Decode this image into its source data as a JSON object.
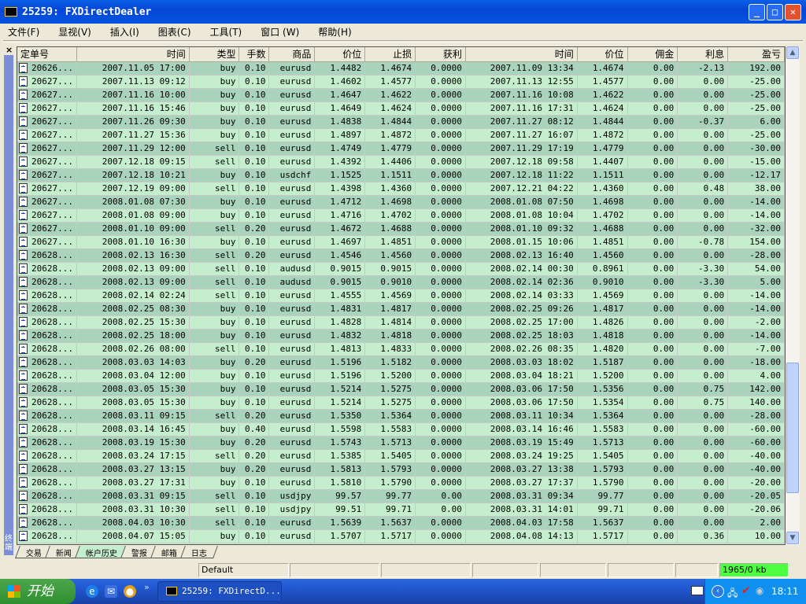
{
  "window": {
    "title": "25259: FXDirectDealer",
    "controls": [
      "minimize",
      "maximize",
      "close"
    ]
  },
  "menu": [
    "文件(F)",
    "显视(V)",
    "插入(I)",
    "图表(C)",
    "工具(T)",
    "窗口 (W)",
    "帮助(H)"
  ],
  "terminal": {
    "side_label": "终端",
    "close_label": "×"
  },
  "table": {
    "columns": [
      "定单号",
      "时间",
      "类型",
      "手数",
      "商品",
      "价位",
      "止损",
      "获利",
      "时间",
      "价位",
      "佣金",
      "利息",
      "盈亏"
    ],
    "rows": [
      [
        "20626...",
        "2007.11.05 17:00",
        "buy",
        "0.10",
        "eurusd",
        "1.4482",
        "1.4674",
        "0.0000",
        "2007.11.09 13:34",
        "1.4674",
        "0.00",
        "-2.13",
        "192.00"
      ],
      [
        "20627...",
        "2007.11.13 09:12",
        "buy",
        "0.10",
        "eurusd",
        "1.4602",
        "1.4577",
        "0.0000",
        "2007.11.13 12:55",
        "1.4577",
        "0.00",
        "0.00",
        "-25.00"
      ],
      [
        "20627...",
        "2007.11.16 10:00",
        "buy",
        "0.10",
        "eurusd",
        "1.4647",
        "1.4622",
        "0.0000",
        "2007.11.16 10:08",
        "1.4622",
        "0.00",
        "0.00",
        "-25.00"
      ],
      [
        "20627...",
        "2007.11.16 15:46",
        "buy",
        "0.10",
        "eurusd",
        "1.4649",
        "1.4624",
        "0.0000",
        "2007.11.16 17:31",
        "1.4624",
        "0.00",
        "0.00",
        "-25.00"
      ],
      [
        "20627...",
        "2007.11.26 09:30",
        "buy",
        "0.10",
        "eurusd",
        "1.4838",
        "1.4844",
        "0.0000",
        "2007.11.27 08:12",
        "1.4844",
        "0.00",
        "-0.37",
        "6.00"
      ],
      [
        "20627...",
        "2007.11.27 15:36",
        "buy",
        "0.10",
        "eurusd",
        "1.4897",
        "1.4872",
        "0.0000",
        "2007.11.27 16:07",
        "1.4872",
        "0.00",
        "0.00",
        "-25.00"
      ],
      [
        "20627...",
        "2007.11.29 12:00",
        "sell",
        "0.10",
        "eurusd",
        "1.4749",
        "1.4779",
        "0.0000",
        "2007.11.29 17:19",
        "1.4779",
        "0.00",
        "0.00",
        "-30.00"
      ],
      [
        "20627...",
        "2007.12.18 09:15",
        "sell",
        "0.10",
        "eurusd",
        "1.4392",
        "1.4406",
        "0.0000",
        "2007.12.18 09:58",
        "1.4407",
        "0.00",
        "0.00",
        "-15.00"
      ],
      [
        "20627...",
        "2007.12.18 10:21",
        "buy",
        "0.10",
        "usdchf",
        "1.1525",
        "1.1511",
        "0.0000",
        "2007.12.18 11:22",
        "1.1511",
        "0.00",
        "0.00",
        "-12.17"
      ],
      [
        "20627...",
        "2007.12.19 09:00",
        "sell",
        "0.10",
        "eurusd",
        "1.4398",
        "1.4360",
        "0.0000",
        "2007.12.21 04:22",
        "1.4360",
        "0.00",
        "0.48",
        "38.00"
      ],
      [
        "20627...",
        "2008.01.08 07:30",
        "buy",
        "0.10",
        "eurusd",
        "1.4712",
        "1.4698",
        "0.0000",
        "2008.01.08 07:50",
        "1.4698",
        "0.00",
        "0.00",
        "-14.00"
      ],
      [
        "20627...",
        "2008.01.08 09:00",
        "buy",
        "0.10",
        "eurusd",
        "1.4716",
        "1.4702",
        "0.0000",
        "2008.01.08 10:04",
        "1.4702",
        "0.00",
        "0.00",
        "-14.00"
      ],
      [
        "20627...",
        "2008.01.10 09:00",
        "sell",
        "0.20",
        "eurusd",
        "1.4672",
        "1.4688",
        "0.0000",
        "2008.01.10 09:32",
        "1.4688",
        "0.00",
        "0.00",
        "-32.00"
      ],
      [
        "20627...",
        "2008.01.10 16:30",
        "buy",
        "0.10",
        "eurusd",
        "1.4697",
        "1.4851",
        "0.0000",
        "2008.01.15 10:06",
        "1.4851",
        "0.00",
        "-0.78",
        "154.00"
      ],
      [
        "20628...",
        "2008.02.13 16:30",
        "sell",
        "0.20",
        "eurusd",
        "1.4546",
        "1.4560",
        "0.0000",
        "2008.02.13 16:40",
        "1.4560",
        "0.00",
        "0.00",
        "-28.00"
      ],
      [
        "20628...",
        "2008.02.13 09:00",
        "sell",
        "0.10",
        "audusd",
        "0.9015",
        "0.9015",
        "0.0000",
        "2008.02.14 00:30",
        "0.8961",
        "0.00",
        "-3.30",
        "54.00"
      ],
      [
        "20628...",
        "2008.02.13 09:00",
        "sell",
        "0.10",
        "audusd",
        "0.9015",
        "0.9010",
        "0.0000",
        "2008.02.14 02:36",
        "0.9010",
        "0.00",
        "-3.30",
        "5.00"
      ],
      [
        "20628...",
        "2008.02.14 02:24",
        "sell",
        "0.10",
        "eurusd",
        "1.4555",
        "1.4569",
        "0.0000",
        "2008.02.14 03:33",
        "1.4569",
        "0.00",
        "0.00",
        "-14.00"
      ],
      [
        "20628...",
        "2008.02.25 08:30",
        "buy",
        "0.10",
        "eurusd",
        "1.4831",
        "1.4817",
        "0.0000",
        "2008.02.25 09:26",
        "1.4817",
        "0.00",
        "0.00",
        "-14.00"
      ],
      [
        "20628...",
        "2008.02.25 15:30",
        "buy",
        "0.10",
        "eurusd",
        "1.4828",
        "1.4814",
        "0.0000",
        "2008.02.25 17:00",
        "1.4826",
        "0.00",
        "0.00",
        "-2.00"
      ],
      [
        "20628...",
        "2008.02.25 18:00",
        "buy",
        "0.10",
        "eurusd",
        "1.4832",
        "1.4818",
        "0.0000",
        "2008.02.25 18:03",
        "1.4818",
        "0.00",
        "0.00",
        "-14.00"
      ],
      [
        "20628...",
        "2008.02.26 08:00",
        "sell",
        "0.10",
        "eurusd",
        "1.4813",
        "1.4833",
        "0.0000",
        "2008.02.26 08:35",
        "1.4820",
        "0.00",
        "0.00",
        "-7.00"
      ],
      [
        "20628...",
        "2008.03.03 14:03",
        "buy",
        "0.20",
        "eurusd",
        "1.5196",
        "1.5182",
        "0.0000",
        "2008.03.03 18:02",
        "1.5187",
        "0.00",
        "0.00",
        "-18.00"
      ],
      [
        "20628...",
        "2008.03.04 12:00",
        "buy",
        "0.10",
        "eurusd",
        "1.5196",
        "1.5200",
        "0.0000",
        "2008.03.04 18:21",
        "1.5200",
        "0.00",
        "0.00",
        "4.00"
      ],
      [
        "20628...",
        "2008.03.05 15:30",
        "buy",
        "0.10",
        "eurusd",
        "1.5214",
        "1.5275",
        "0.0000",
        "2008.03.06 17:50",
        "1.5356",
        "0.00",
        "0.75",
        "142.00"
      ],
      [
        "20628...",
        "2008.03.05 15:30",
        "buy",
        "0.10",
        "eurusd",
        "1.5214",
        "1.5275",
        "0.0000",
        "2008.03.06 17:50",
        "1.5354",
        "0.00",
        "0.75",
        "140.00"
      ],
      [
        "20628...",
        "2008.03.11 09:15",
        "sell",
        "0.20",
        "eurusd",
        "1.5350",
        "1.5364",
        "0.0000",
        "2008.03.11 10:34",
        "1.5364",
        "0.00",
        "0.00",
        "-28.00"
      ],
      [
        "20628...",
        "2008.03.14 16:45",
        "buy",
        "0.40",
        "eurusd",
        "1.5598",
        "1.5583",
        "0.0000",
        "2008.03.14 16:46",
        "1.5583",
        "0.00",
        "0.00",
        "-60.00"
      ],
      [
        "20628...",
        "2008.03.19 15:30",
        "buy",
        "0.20",
        "eurusd",
        "1.5743",
        "1.5713",
        "0.0000",
        "2008.03.19 15:49",
        "1.5713",
        "0.00",
        "0.00",
        "-60.00"
      ],
      [
        "20628...",
        "2008.03.24 17:15",
        "sell",
        "0.20",
        "eurusd",
        "1.5385",
        "1.5405",
        "0.0000",
        "2008.03.24 19:25",
        "1.5405",
        "0.00",
        "0.00",
        "-40.00"
      ],
      [
        "20628...",
        "2008.03.27 13:15",
        "buy",
        "0.20",
        "eurusd",
        "1.5813",
        "1.5793",
        "0.0000",
        "2008.03.27 13:38",
        "1.5793",
        "0.00",
        "0.00",
        "-40.00"
      ],
      [
        "20628...",
        "2008.03.27 17:31",
        "buy",
        "0.10",
        "eurusd",
        "1.5810",
        "1.5790",
        "0.0000",
        "2008.03.27 17:37",
        "1.5790",
        "0.00",
        "0.00",
        "-20.00"
      ],
      [
        "20628...",
        "2008.03.31 09:15",
        "sell",
        "0.10",
        "usdjpy",
        "99.57",
        "99.77",
        "0.00",
        "2008.03.31 09:34",
        "99.77",
        "0.00",
        "0.00",
        "-20.05"
      ],
      [
        "20628...",
        "2008.03.31 10:30",
        "sell",
        "0.10",
        "usdjpy",
        "99.51",
        "99.71",
        "0.00",
        "2008.03.31 14:01",
        "99.71",
        "0.00",
        "0.00",
        "-20.06"
      ],
      [
        "20628...",
        "2008.04.03 10:30",
        "sell",
        "0.10",
        "eurusd",
        "1.5639",
        "1.5637",
        "0.0000",
        "2008.04.03 17:58",
        "1.5637",
        "0.00",
        "0.00",
        "2.00"
      ],
      [
        "20628...",
        "2008.04.07 15:05",
        "buy",
        "0.10",
        "eurusd",
        "1.5707",
        "1.5717",
        "0.0000",
        "2008.04.08 14:13",
        "1.5717",
        "0.00",
        "0.36",
        "10.00"
      ]
    ]
  },
  "tabs": [
    {
      "label": "交易"
    },
    {
      "label": "新闻"
    },
    {
      "label": "帐户历史",
      "active": true
    },
    {
      "label": "警报"
    },
    {
      "label": "邮箱"
    },
    {
      "label": "日志"
    }
  ],
  "status": {
    "profile": "Default",
    "traffic": "1965/0 kb",
    "traffic_color": "#4cff40"
  },
  "taskbar": {
    "start": "开始",
    "task": "25259: FXDirectD...",
    "clock": "18:11",
    "chevron": "»"
  },
  "colors": {
    "row_dark": "#a9d3ba",
    "row_light": "#c4eecd",
    "title_blue": "#0546d6"
  }
}
